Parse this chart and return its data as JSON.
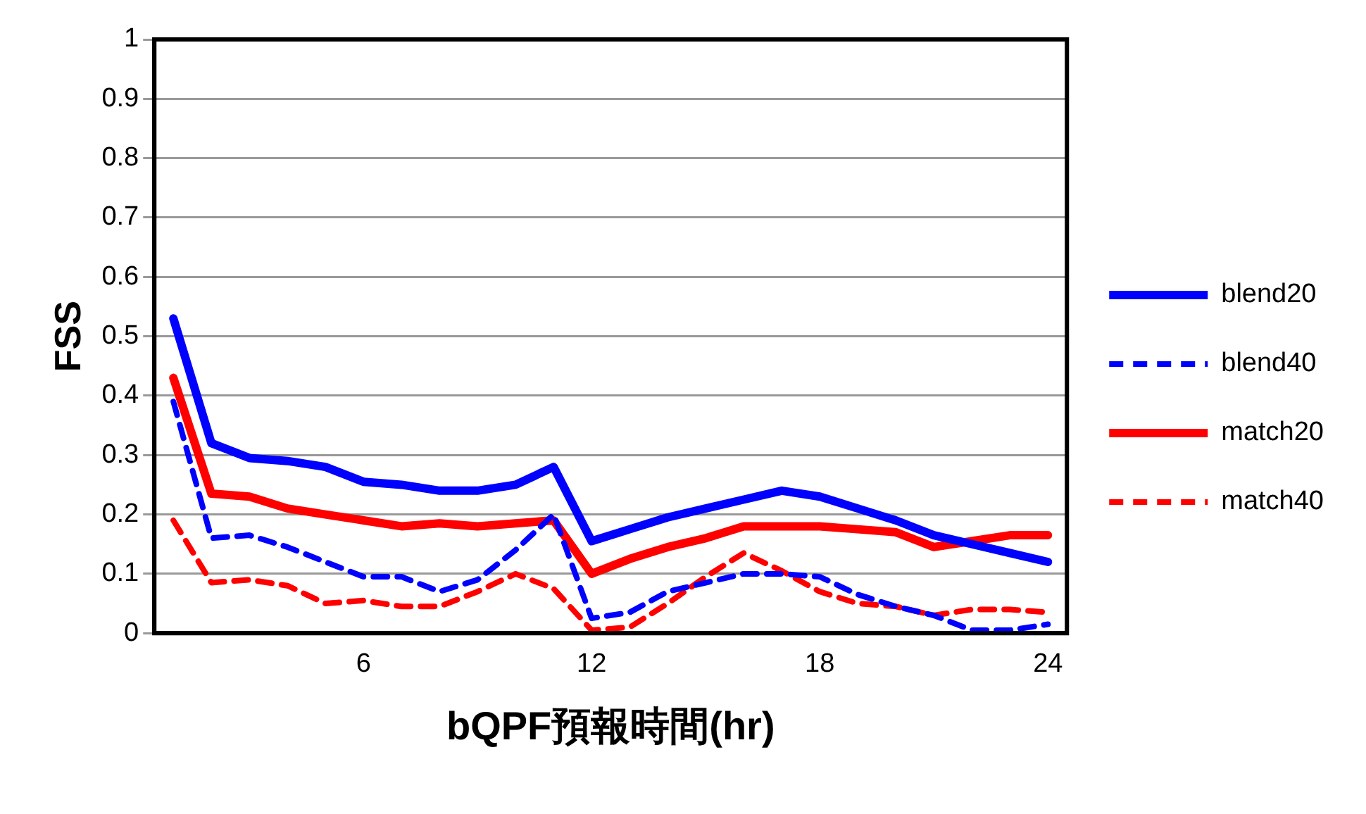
{
  "chart_data": {
    "type": "line",
    "xlabel": "bQPF預報時間(hr)",
    "ylabel": "FSS",
    "categories": [
      null,
      null,
      null,
      null,
      null,
      "6",
      null,
      null,
      null,
      null,
      null,
      "12",
      null,
      null,
      null,
      null,
      null,
      "18",
      null,
      null,
      null,
      null,
      null,
      "24"
    ],
    "series": [
      {
        "name": "blend20",
        "color": "#0000ff",
        "line_style": "solid",
        "values": [
          0.53,
          0.32,
          0.295,
          0.29,
          0.28,
          0.255,
          0.25,
          0.24,
          0.24,
          0.25,
          0.28,
          0.155,
          0.175,
          0.195,
          0.21,
          0.225,
          0.24,
          0.23,
          0.21,
          0.19,
          0.165,
          0.15,
          0.135,
          0.12
        ]
      },
      {
        "name": "blend40",
        "color": "#0000ff",
        "line_style": "dashed",
        "values": [
          0.39,
          0.16,
          0.165,
          0.145,
          0.12,
          0.095,
          0.095,
          0.07,
          0.09,
          0.14,
          0.2,
          0.025,
          0.035,
          0.07,
          0.085,
          0.1,
          0.1,
          0.095,
          0.065,
          0.045,
          0.03,
          0.005,
          0.005,
          0.015
        ]
      },
      {
        "name": "match20",
        "color": "#ff0000",
        "line_style": "solid",
        "values": [
          0.43,
          0.235,
          0.23,
          0.21,
          0.2,
          0.19,
          0.18,
          0.185,
          0.18,
          0.185,
          0.19,
          0.1,
          0.125,
          0.145,
          0.16,
          0.18,
          0.18,
          0.18,
          0.175,
          0.17,
          0.145,
          0.155,
          0.165,
          0.165
        ]
      },
      {
        "name": "match40",
        "color": "#ff0000",
        "line_style": "dashed",
        "values": [
          0.19,
          0.085,
          0.09,
          0.08,
          0.05,
          0.055,
          0.045,
          0.045,
          0.07,
          0.1,
          0.075,
          0.005,
          0.01,
          0.05,
          0.095,
          0.135,
          0.105,
          0.07,
          0.05,
          0.045,
          0.03,
          0.04,
          0.04,
          0.035
        ]
      }
    ],
    "ylim": [
      0,
      1
    ],
    "yticks": [
      0,
      0.1,
      0.2,
      0.3,
      0.4,
      0.5,
      0.6,
      0.7,
      0.8,
      0.9,
      1
    ],
    "grid": "y",
    "legend": "right",
    "marker": "none"
  }
}
